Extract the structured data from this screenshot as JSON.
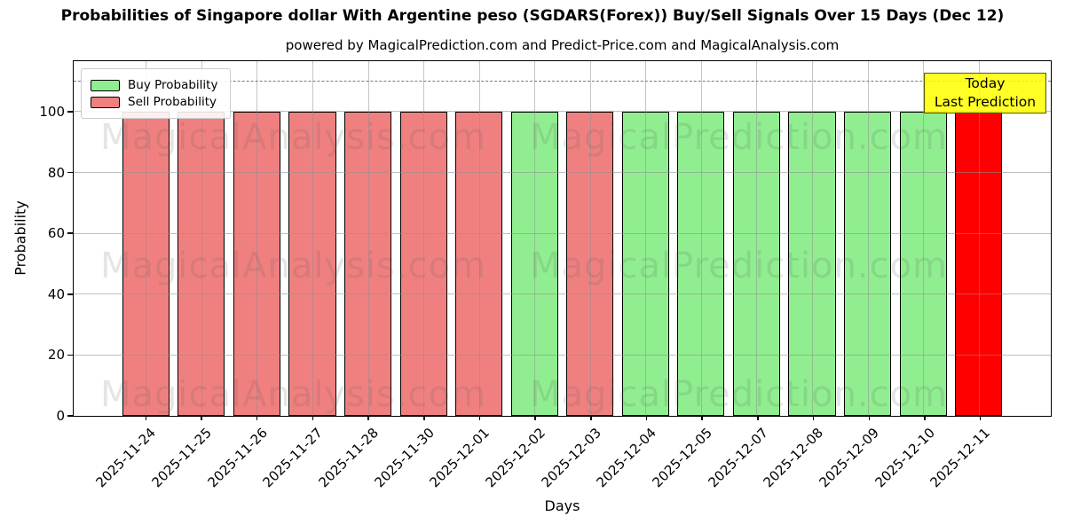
{
  "chart_data": {
    "type": "bar",
    "title": "Probabilities of Singapore dollar With Argentine peso (SGDARS(Forex)) Buy/Sell Signals Over 15 Days (Dec 12)",
    "subtitle": "powered by MagicalPrediction.com and Predict-Price.com and MagicalAnalysis.com",
    "xlabel": "Days",
    "ylabel": "Probability",
    "ylim": [
      0,
      116.6
    ],
    "yticks": [
      0,
      20,
      40,
      60,
      80,
      100
    ],
    "grid": true,
    "dashed_line_y": 110,
    "legend": {
      "position": "upper left",
      "entries": [
        {
          "label": "Buy Probability",
          "color": "#90ee90"
        },
        {
          "label": "Sell Probability",
          "color": "#f08080"
        }
      ]
    },
    "annotation": {
      "lines": [
        "Today",
        "Last Prediction"
      ],
      "bg_color": "#ffff00",
      "position": "top-right"
    },
    "watermarks": [
      "MagicalAnalysis.com",
      "MagicalPrediction.com"
    ],
    "colors": {
      "buy": "#90ee90",
      "sell": "#f08080",
      "last": "#ff0000"
    },
    "categories": [
      "2025-11-24",
      "2025-11-25",
      "2025-11-26",
      "2025-11-27",
      "2025-11-28",
      "2025-11-30",
      "2025-12-01",
      "2025-12-02",
      "2025-12-03",
      "2025-12-04",
      "2025-12-05",
      "2025-12-07",
      "2025-12-08",
      "2025-12-09",
      "2025-12-10",
      "2025-12-11"
    ],
    "values": [
      100,
      100,
      100,
      100,
      100,
      100,
      100,
      100,
      100,
      100,
      100,
      100,
      100,
      100,
      100,
      100
    ],
    "bars": [
      {
        "date": "2025-11-24",
        "value": 100,
        "signal": "sell"
      },
      {
        "date": "2025-11-25",
        "value": 100,
        "signal": "sell"
      },
      {
        "date": "2025-11-26",
        "value": 100,
        "signal": "sell"
      },
      {
        "date": "2025-11-27",
        "value": 100,
        "signal": "sell"
      },
      {
        "date": "2025-11-28",
        "value": 100,
        "signal": "sell"
      },
      {
        "date": "2025-11-30",
        "value": 100,
        "signal": "sell"
      },
      {
        "date": "2025-12-01",
        "value": 100,
        "signal": "sell"
      },
      {
        "date": "2025-12-02",
        "value": 100,
        "signal": "buy"
      },
      {
        "date": "2025-12-03",
        "value": 100,
        "signal": "sell"
      },
      {
        "date": "2025-12-04",
        "value": 100,
        "signal": "buy"
      },
      {
        "date": "2025-12-05",
        "value": 100,
        "signal": "buy"
      },
      {
        "date": "2025-12-07",
        "value": 100,
        "signal": "buy"
      },
      {
        "date": "2025-12-08",
        "value": 100,
        "signal": "buy"
      },
      {
        "date": "2025-12-09",
        "value": 100,
        "signal": "buy"
      },
      {
        "date": "2025-12-10",
        "value": 100,
        "signal": "buy"
      },
      {
        "date": "2025-12-11",
        "value": 100,
        "signal": "last"
      }
    ]
  }
}
